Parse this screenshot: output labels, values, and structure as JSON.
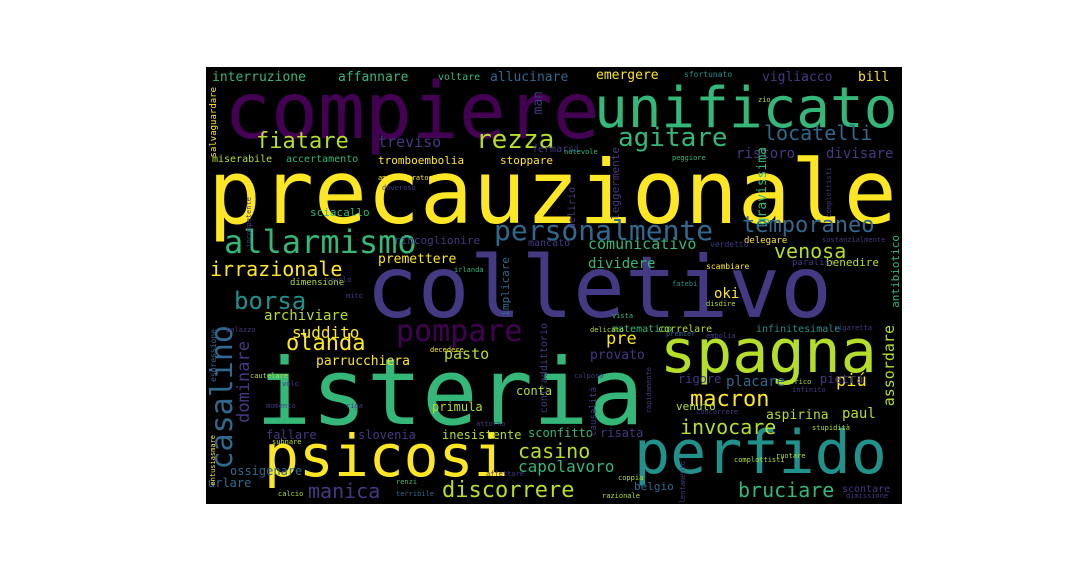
{
  "palette": {
    "yellow": "#fde725",
    "lime": "#b5de2b",
    "green": "#35b779",
    "teal": "#21918c",
    "blue": "#31688e",
    "indigo": "#443983",
    "purple": "#440154"
  },
  "words": [
    "compiere",
    "unificato",
    "precauzionale",
    "colletivo",
    "isteria",
    "spagna",
    "perfido",
    "psicosi",
    "allarmismo",
    "personalmente",
    "agitare",
    "rezza",
    "fiatare",
    "temporaneo",
    "locatelli",
    "borsa",
    "irrazionale",
    "casalino",
    "pompare",
    "olanda",
    "macron",
    "invocare",
    "bruciare",
    "discorrere",
    "casino",
    "manica",
    "capolavoro",
    "venosa",
    "suddito",
    "interruzione",
    "affannare",
    "voltare",
    "allucinare",
    "emergere",
    "sfortunato",
    "vigliacco",
    "bill",
    "treviso",
    "ristoro",
    "divisare",
    "comunicativo",
    "dividere",
    "premettere",
    "dominare",
    "archiviare",
    "assordare",
    "pre",
    "oki",
    "piú",
    "paul",
    "pietra",
    "placare",
    "rigore",
    "aspirina",
    "risata",
    "sconfitto",
    "primula",
    "pasto",
    "parrucchiera",
    "provato",
    "conta",
    "venuto",
    "inesistente",
    "slovenia",
    "fallare",
    "ossigenare",
    "urlare",
    "belgio",
    "scontare",
    "tromboembolia",
    "stoppare",
    "accertamento",
    "miserabile",
    "fermarsi",
    "man",
    "gravissima",
    "sciacallo",
    "rincoglionire",
    "mancato",
    "delegare",
    "benedire",
    "antibiotico",
    "matematico",
    "correlare",
    "infinitesimale",
    "dimensione",
    "implicare",
    "scambiare",
    "verdetto",
    "paralisi",
    "salvaguardare",
    "amministratore",
    "doveroso",
    "notevole",
    "peggiore",
    "complottisti",
    "zio",
    "delirio",
    "leggermente",
    "irlanda",
    "cavolo",
    "mito",
    "palazzo",
    "espressione",
    "decedere",
    "colposo",
    "premier",
    "embolia",
    "disdire",
    "vista",
    "delicato",
    "fatebi",
    "sigaretta",
    "cautelare",
    "volo",
    "momento",
    "riga",
    "entusiasmare",
    "stupidità",
    "ruotare",
    "concorrere",
    "infinito",
    "africo",
    "calcio",
    "terribile",
    "razionale",
    "coppia",
    "renzi",
    "dimissione",
    "attorno",
    "rapidamente",
    "causalità",
    "contraddittorio",
    "complottisti",
    "sostanzialmente",
    "incompetente",
    "subnare",
    "affettare",
    "rallentamento"
  ]
}
